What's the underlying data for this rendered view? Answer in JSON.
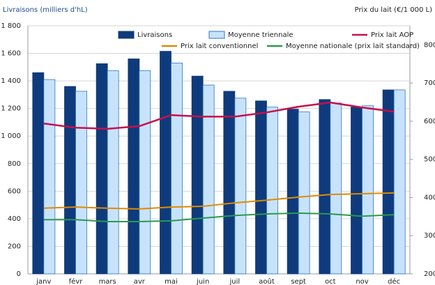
{
  "chart_data": {
    "type": "bar",
    "y_label": "Livraisons (milliers d'hL)",
    "y2_label": "Prix du lait (€/1 000 L)",
    "categories": [
      "janv",
      "févr",
      "mars",
      "avr",
      "mai",
      "juin",
      "juil",
      "août",
      "sept",
      "oct",
      "nov",
      "déc"
    ],
    "series": [
      {
        "name": "Livraisons",
        "type": "bar",
        "color": "#0f3b7c",
        "values": [
          1460,
          1360,
          1525,
          1560,
          1615,
          1435,
          1325,
          1255,
          1195,
          1265,
          1210,
          1335
        ]
      },
      {
        "name": "Moyenne triennale",
        "type": "bar",
        "color": "#c7e3fb",
        "values": [
          1410,
          1325,
          1475,
          1475,
          1530,
          1370,
          1275,
          1210,
          1175,
          1240,
          1220,
          1335
        ]
      },
      {
        "name": "Prix lait AOP",
        "type": "line",
        "axis": "y2",
        "color": "#c8104a",
        "values": [
          594,
          583,
          580,
          587,
          616,
          612,
          612,
          623,
          638,
          649,
          636,
          625
        ]
      },
      {
        "name": "Prix lait conventionnel",
        "type": "line",
        "axis": "y2",
        "color": "#e08a00",
        "values": [
          372,
          375,
          372,
          370,
          375,
          377,
          386,
          393,
          401,
          408,
          410,
          412
        ]
      },
      {
        "name": "Moyenne nationale (prix lait standard)",
        "type": "line",
        "axis": "y2",
        "color": "#2a9a4a",
        "values": [
          342,
          342,
          337,
          337,
          339,
          346,
          353,
          357,
          359,
          357,
          351,
          355
        ]
      }
    ],
    "ylim": [
      0,
      1800
    ],
    "yticks": [
      0,
      200,
      400,
      600,
      800,
      {
        "value": 1000,
        "label": "1 000"
      },
      {
        "value": 1200,
        "label": "1 200"
      },
      {
        "value": 1400,
        "label": "1 400"
      },
      {
        "value": 1600,
        "label": "1 600"
      },
      {
        "value": 1800,
        "label": "1 800"
      }
    ],
    "y2lim": [
      200,
      850
    ],
    "y2ticks": [
      200,
      300,
      400,
      500,
      600,
      700,
      800
    ],
    "grid": true
  }
}
